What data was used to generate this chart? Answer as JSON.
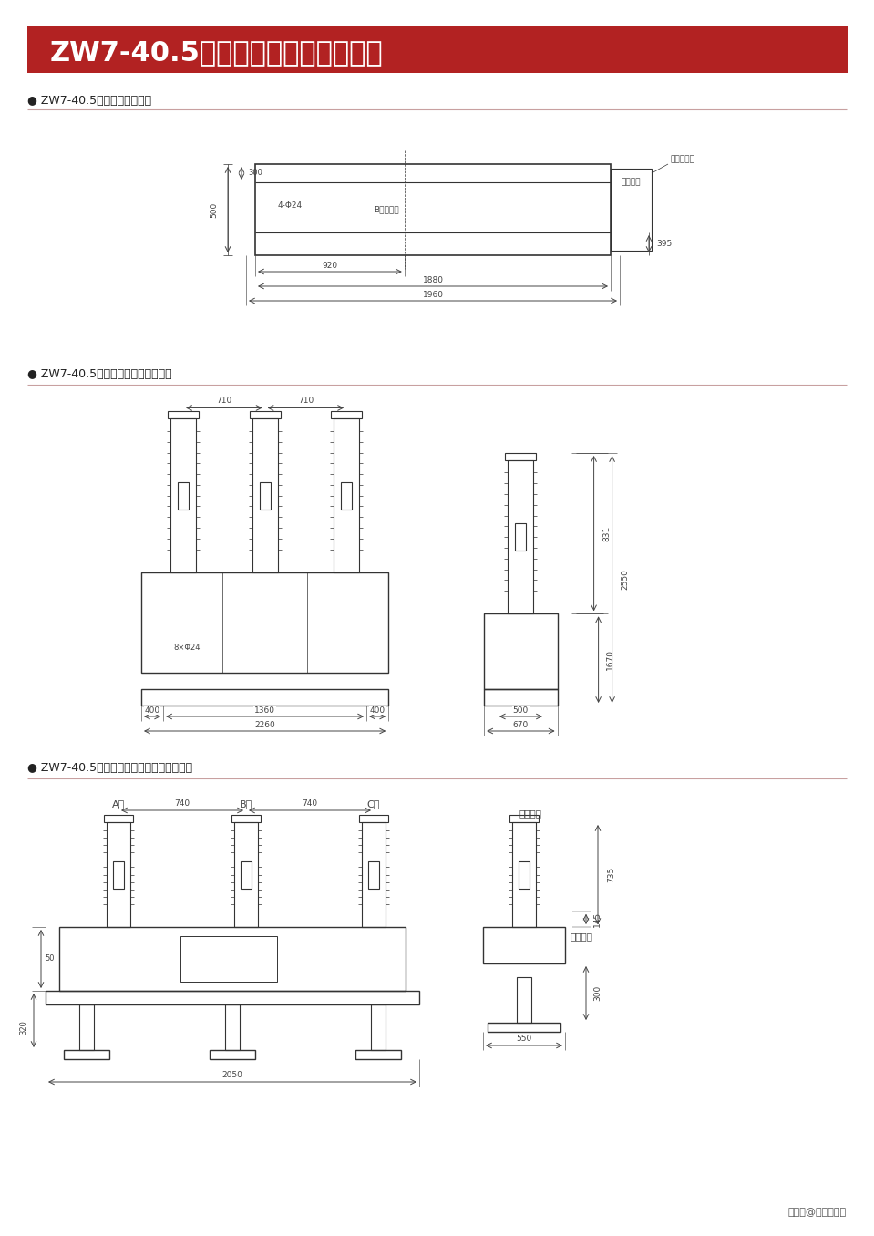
{
  "title": "ZW7-40.5户外高压交流真空断路器",
  "bg_color": "#ffffff",
  "header_bg": "#b22222",
  "header_text_color": "#ffffff",
  "section1_label": "● ZW7-40.5断路器安装尺寸图",
  "section2_label": "● ZW7-40.5中置式断路器外形尺寸图",
  "section3_label": "● ZW7-40.5内置绵缘拉杆断路器外形尺寸图",
  "footer_text": "搜狐号@电气知识享",
  "line_color": "#333333",
  "dim_color": "#444444",
  "red_line_color": "#c8a0a0",
  "section1_dims": {
    "500": "500",
    "300": "300",
    "4phi24": "4-Φ24",
    "B_center": "B极中心线",
    "spring": "弹簧机构",
    "secondary": "二次出线孔",
    "920": "920",
    "1880": "1880",
    "1960": "1960",
    "395": "395"
  },
  "section2_dims": {
    "710a": "710",
    "710b": "710",
    "400a": "400",
    "1360": "1360",
    "400b": "400",
    "2260": "2260",
    "500s": "500",
    "670": "670",
    "831": "831",
    "2550": "2550",
    "1670": "1670",
    "8phi24": "8×Φ24"
  },
  "section3_dims": {
    "A": "A相",
    "B": "B相",
    "C": "C相",
    "740a": "740",
    "740b": "740",
    "2050": "2050",
    "50": "50",
    "320": "320",
    "top_terminal": "上进线端",
    "bottom_terminal": "下出线端",
    "735": "735",
    "300s": "300",
    "550": "550",
    "145": "145"
  }
}
